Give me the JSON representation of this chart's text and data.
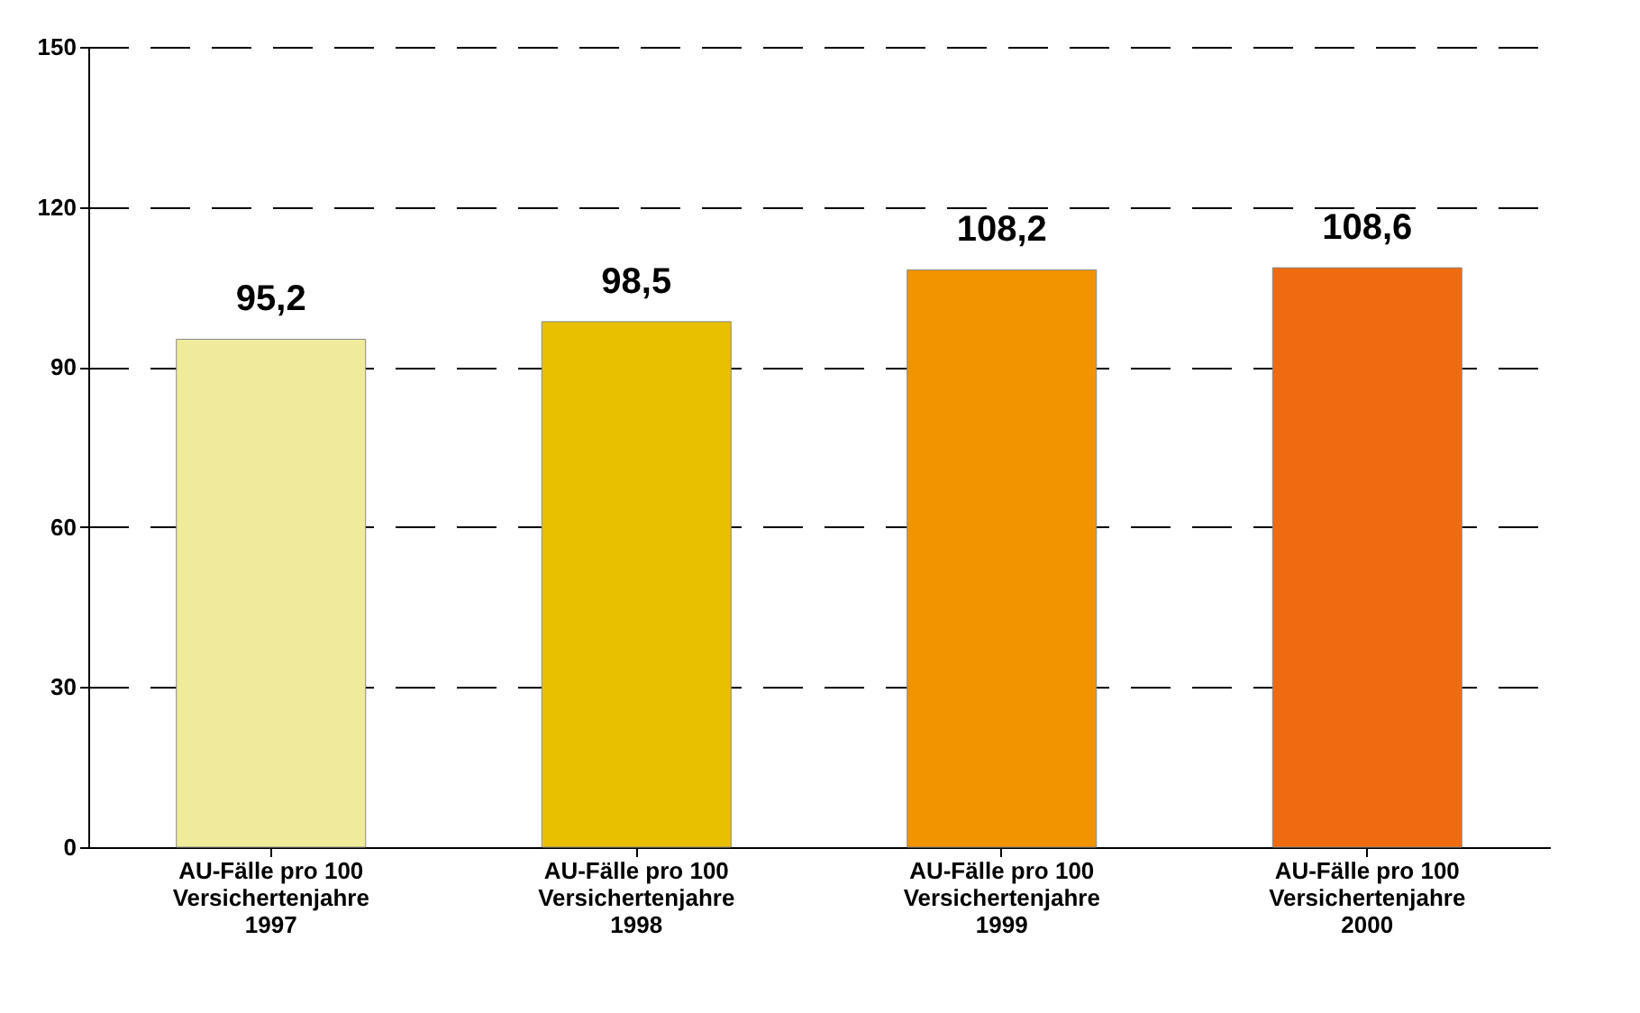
{
  "chart_data": {
    "type": "bar",
    "categories": [
      "AU-Fälle pro 100\nVersichertenjahre\n1997",
      "AU-Fälle pro 100\nVersichertenjahre\n1998",
      "AU-Fälle pro 100\nVersichertenjahre\n1999",
      "AU-Fälle pro 100\nVersichertenjahre\n2000"
    ],
    "values": [
      95.2,
      98.5,
      108.2,
      108.6
    ],
    "colors": [
      "#f0eb9a",
      "#e8c000",
      "#f29400",
      "#f06a10"
    ],
    "value_labels": [
      "95,2",
      "98,5",
      "108,2",
      "108,6"
    ],
    "ylim": [
      0,
      150
    ],
    "yticks": [
      0,
      30,
      60,
      90,
      120,
      150
    ],
    "grid": "y"
  }
}
